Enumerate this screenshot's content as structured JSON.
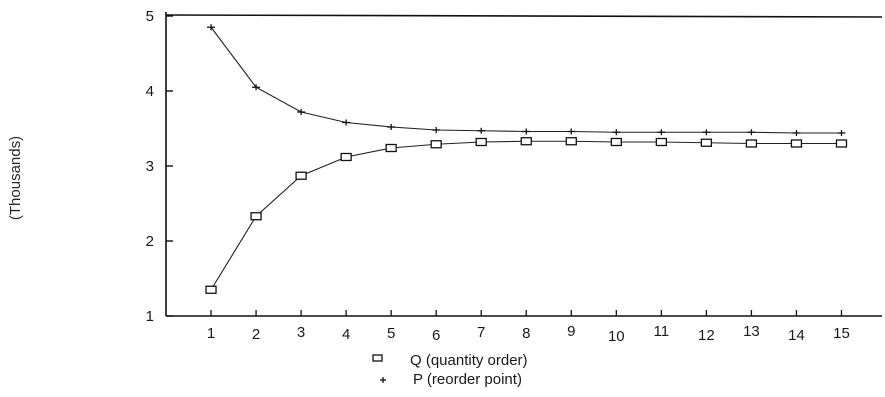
{
  "chart_data": {
    "type": "line",
    "ylabel": "(Thousands)",
    "x": [
      1,
      2,
      3,
      4,
      5,
      6,
      7,
      8,
      9,
      10,
      11,
      12,
      13,
      14,
      15
    ],
    "xlim": [
      0,
      15.9
    ],
    "ylim": [
      1,
      5
    ],
    "yticks": [
      "1",
      "2",
      "3",
      "4",
      "5"
    ],
    "xticks": [
      "1",
      "2",
      "3",
      "4",
      "5",
      "6",
      "7",
      "8",
      "9",
      "10",
      "11",
      "12",
      "13",
      "14",
      "15"
    ],
    "series": [
      {
        "name": "Q (quantity order)",
        "marker": "square",
        "values": [
          1.35,
          2.33,
          2.87,
          3.12,
          3.24,
          3.29,
          3.32,
          3.33,
          3.33,
          3.32,
          3.32,
          3.31,
          3.3,
          3.3,
          3.3
        ]
      },
      {
        "name": "P (reorder point)",
        "marker": "plus",
        "values": [
          4.85,
          4.05,
          3.72,
          3.58,
          3.52,
          3.48,
          3.47,
          3.46,
          3.46,
          3.45,
          3.45,
          3.45,
          3.45,
          3.44,
          3.44
        ]
      }
    ],
    "grid": false,
    "legend_position": "bottom-center"
  }
}
